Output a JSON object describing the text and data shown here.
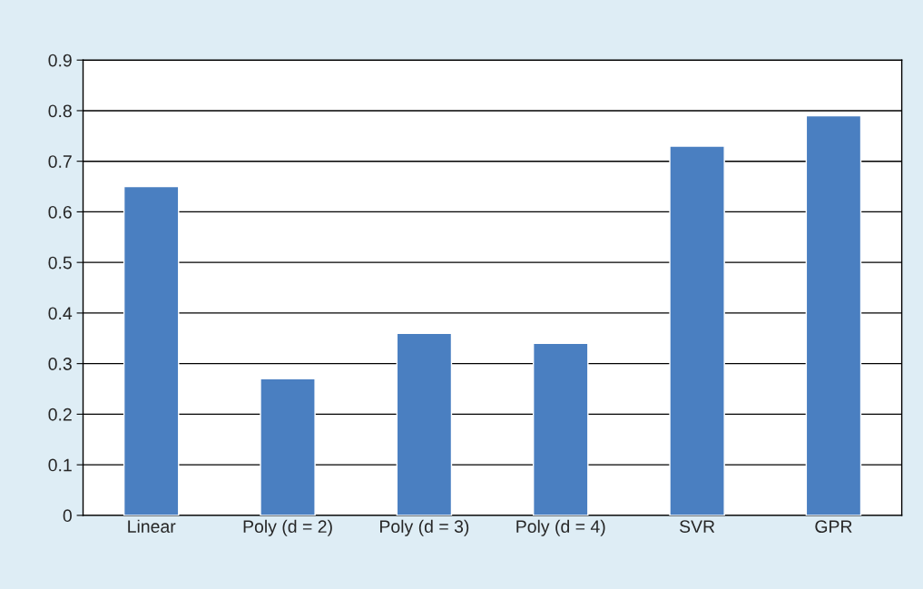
{
  "chart_data": {
    "type": "bar",
    "categories": [
      "Linear",
      "Poly (d = 2)",
      "Poly (d = 3)",
      "Poly (d = 4)",
      "SVR",
      "GPR"
    ],
    "values": [
      0.65,
      0.27,
      0.36,
      0.34,
      0.73,
      0.79
    ],
    "color": "#4a7fc1",
    "ylim": [
      0,
      0.9
    ],
    "yticks": [
      {
        "value": 0,
        "label": "0"
      },
      0.1,
      0.2,
      0.3,
      0.4,
      0.5,
      0.6,
      0.7,
      0.8,
      0.9
    ],
    "grid": "y",
    "legend": false
  }
}
